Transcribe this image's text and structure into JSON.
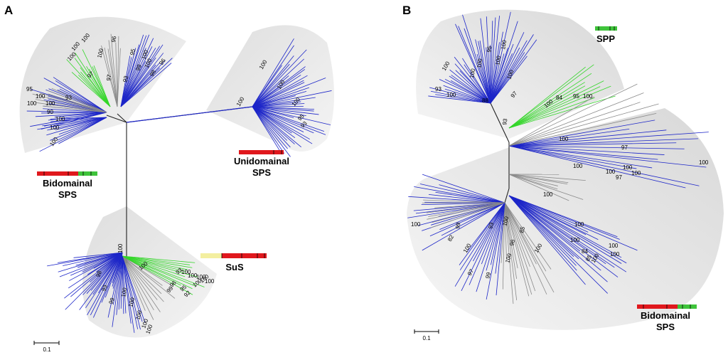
{
  "panels": [
    {
      "id": "A",
      "label": "A",
      "scale_label": "0.1",
      "clades": [
        {
          "name_line1": "Unidomainal",
          "name_line2": "SPS"
        },
        {
          "name_line1": "Bidomainal",
          "name_line2": "SPS"
        },
        {
          "name_line1": "SuS",
          "name_line2": ""
        }
      ],
      "bootstrap_labels": [
        "100",
        "100",
        "95",
        "100",
        "93",
        "100",
        "100",
        "90",
        "100",
        "100",
        "100",
        "96",
        "100",
        "97",
        "93",
        "95",
        "99",
        "100",
        "100",
        "98",
        "96",
        "100",
        "100",
        "100",
        "97",
        "100",
        "100",
        "95",
        "93",
        "100",
        "100",
        "93",
        "96",
        "99",
        "95",
        "92",
        "100",
        "100",
        "100",
        "100",
        "100",
        "100",
        "99",
        "98",
        "93",
        "100",
        "100",
        "100",
        "100",
        "100"
      ]
    },
    {
      "id": "B",
      "label": "B",
      "scale_label": "0.1",
      "clades": [
        {
          "name_line1": "SPP",
          "name_line2": ""
        },
        {
          "name_line1": "Bidomainal",
          "name_line2": "SPS"
        }
      ],
      "bootstrap_labels": [
        "100",
        "100",
        "100",
        "95",
        "100",
        "100",
        "100",
        "97",
        "84",
        "95",
        "100",
        "100",
        "100",
        "93",
        "88",
        "93",
        "100",
        "97",
        "100",
        "100",
        "100",
        "100",
        "97",
        "100",
        "100",
        "100",
        "99",
        "100",
        "93",
        "100",
        "82",
        "100",
        "85",
        "96",
        "100",
        "99",
        "97",
        "100",
        "100",
        "84",
        "85",
        "100",
        "100",
        "100"
      ]
    }
  ],
  "colors": {
    "spps_branch": "#1c25c8",
    "spp_branch": "#33d629",
    "other_branch": "#8a8a8a",
    "backbone": "#222222",
    "clade_shade": "#e8e8e8",
    "domain_red": "#e0181d",
    "domain_green": "#3fc43b",
    "domain_yellow": "#f3efa0"
  }
}
